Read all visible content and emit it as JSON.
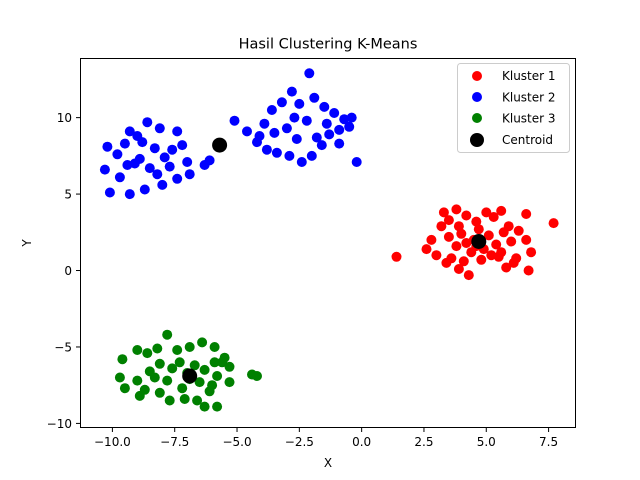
{
  "chart_data": {
    "type": "scatter",
    "title": "Hasil Clustering K-Means",
    "xlabel": "X",
    "ylabel": "Y",
    "xlim": [
      -11.3,
      8.6
    ],
    "ylim": [
      -10.3,
      13.9
    ],
    "xticks": [
      -10.0,
      -7.5,
      -5.0,
      -2.5,
      0.0,
      2.5,
      5.0,
      7.5
    ],
    "xtick_labels": [
      "−10.0",
      "−7.5",
      "−5.0",
      "−2.5",
      "0.0",
      "2.5",
      "5.0",
      "7.5"
    ],
    "yticks": [
      -10,
      -5,
      0,
      5,
      10
    ],
    "ytick_labels": [
      "−10",
      "−5",
      "0",
      "5",
      "10"
    ],
    "grid": false,
    "legend_position": "top-right",
    "series": [
      {
        "name": "Kluster 1",
        "color": "#ff0000",
        "points": [
          [
            1.4,
            0.9
          ],
          [
            7.7,
            3.1
          ],
          [
            3.8,
            4.0
          ],
          [
            3.3,
            3.8
          ],
          [
            5.0,
            3.8
          ],
          [
            5.6,
            3.9
          ],
          [
            6.6,
            3.7
          ],
          [
            4.3,
            -0.3
          ],
          [
            3.4,
            0.5
          ],
          [
            3.9,
            0.1
          ],
          [
            5.8,
            0.2
          ],
          [
            6.7,
            0.0
          ],
          [
            6.8,
            1.2
          ],
          [
            6.1,
            0.5
          ],
          [
            2.6,
            1.4
          ],
          [
            2.8,
            2.0
          ],
          [
            3.2,
            2.9
          ],
          [
            3.5,
            3.3
          ],
          [
            4.2,
            3.6
          ],
          [
            4.6,
            3.2
          ],
          [
            5.3,
            3.5
          ],
          [
            5.9,
            2.9
          ],
          [
            6.3,
            2.6
          ],
          [
            6.6,
            2.0
          ],
          [
            3.0,
            1.0
          ],
          [
            3.6,
            0.8
          ],
          [
            4.1,
            0.6
          ],
          [
            4.8,
            0.7
          ],
          [
            5.5,
            0.9
          ],
          [
            6.2,
            0.8
          ],
          [
            3.8,
            1.6
          ],
          [
            4.0,
            2.4
          ],
          [
            4.4,
            1.2
          ],
          [
            4.5,
            2.0
          ],
          [
            4.9,
            1.4
          ],
          [
            5.1,
            2.3
          ],
          [
            5.4,
            1.7
          ],
          [
            5.7,
            2.5
          ],
          [
            6.0,
            1.9
          ],
          [
            3.5,
            2.2
          ],
          [
            4.7,
            2.7
          ],
          [
            5.2,
            1.0
          ],
          [
            4.2,
            1.8
          ],
          [
            5.6,
            1.2
          ],
          [
            3.9,
            2.9
          ],
          [
            4.6,
            1.6
          ]
        ]
      },
      {
        "name": "Kluster 2",
        "color": "#0000ff",
        "points": [
          [
            -10.2,
            8.1
          ],
          [
            -10.1,
            5.1
          ],
          [
            -10.3,
            6.6
          ],
          [
            -9.8,
            7.6
          ],
          [
            -9.5,
            8.3
          ],
          [
            -9.3,
            9.1
          ],
          [
            -9.0,
            8.8
          ],
          [
            -8.6,
            9.7
          ],
          [
            -8.1,
            9.3
          ],
          [
            -7.4,
            9.1
          ],
          [
            -7.2,
            8.2
          ],
          [
            -7.0,
            7.1
          ],
          [
            -6.9,
            6.3
          ],
          [
            -7.4,
            6.0
          ],
          [
            -8.0,
            5.6
          ],
          [
            -8.7,
            5.3
          ],
          [
            -9.3,
            5.0
          ],
          [
            -9.7,
            6.1
          ],
          [
            -9.4,
            6.9
          ],
          [
            -8.9,
            7.3
          ],
          [
            -8.5,
            6.7
          ],
          [
            -8.3,
            8.0
          ],
          [
            -7.9,
            7.4
          ],
          [
            -7.7,
            6.8
          ],
          [
            -8.8,
            8.4
          ],
          [
            -9.1,
            7.0
          ],
          [
            -8.2,
            6.3
          ],
          [
            -7.6,
            7.9
          ],
          [
            -6.3,
            6.9
          ],
          [
            -6.1,
            7.2
          ],
          [
            -5.1,
            9.8
          ],
          [
            -4.6,
            9.1
          ],
          [
            -4.2,
            8.4
          ],
          [
            -3.9,
            9.6
          ],
          [
            -3.6,
            10.5
          ],
          [
            -3.2,
            11.0
          ],
          [
            -2.8,
            11.7
          ],
          [
            -2.1,
            12.9
          ],
          [
            -2.5,
            10.9
          ],
          [
            -1.9,
            11.3
          ],
          [
            -1.5,
            10.7
          ],
          [
            -1.1,
            10.3
          ],
          [
            -0.7,
            9.9
          ],
          [
            -0.4,
            10.0
          ],
          [
            -0.5,
            9.4
          ],
          [
            -0.9,
            9.2
          ],
          [
            -1.3,
            8.9
          ],
          [
            -1.6,
            8.2
          ],
          [
            -2.0,
            7.5
          ],
          [
            -2.4,
            7.1
          ],
          [
            -2.9,
            7.5
          ],
          [
            -3.4,
            7.7
          ],
          [
            -3.8,
            7.9
          ],
          [
            -4.1,
            8.8
          ],
          [
            -0.2,
            7.1
          ],
          [
            -0.9,
            8.3
          ],
          [
            -2.6,
            8.6
          ],
          [
            -3.0,
            9.3
          ],
          [
            -2.2,
            9.8
          ],
          [
            -1.8,
            8.7
          ],
          [
            -3.5,
            9.0
          ],
          [
            -2.7,
            10.0
          ],
          [
            -1.4,
            9.6
          ]
        ]
      },
      {
        "name": "Kluster 3",
        "color": "#008000",
        "points": [
          [
            -9.6,
            -5.8
          ],
          [
            -9.7,
            -7.0
          ],
          [
            -9.5,
            -7.7
          ],
          [
            -9.0,
            -5.2
          ],
          [
            -8.6,
            -5.4
          ],
          [
            -8.2,
            -5.1
          ],
          [
            -7.8,
            -4.2
          ],
          [
            -7.4,
            -5.2
          ],
          [
            -6.9,
            -5.0
          ],
          [
            -6.4,
            -4.7
          ],
          [
            -5.9,
            -5.0
          ],
          [
            -5.5,
            -5.7
          ],
          [
            -5.3,
            -6.3
          ],
          [
            -5.8,
            -6.9
          ],
          [
            -5.3,
            -7.3
          ],
          [
            -6.1,
            -7.9
          ],
          [
            -6.3,
            -8.9
          ],
          [
            -5.8,
            -8.9
          ],
          [
            -6.6,
            -8.5
          ],
          [
            -7.1,
            -8.4
          ],
          [
            -7.7,
            -8.5
          ],
          [
            -8.1,
            -8.0
          ],
          [
            -8.7,
            -7.8
          ],
          [
            -8.9,
            -8.2
          ],
          [
            -9.0,
            -7.2
          ],
          [
            -8.5,
            -6.6
          ],
          [
            -8.1,
            -6.1
          ],
          [
            -7.6,
            -6.4
          ],
          [
            -7.3,
            -6.0
          ],
          [
            -7.0,
            -6.7
          ],
          [
            -6.7,
            -6.2
          ],
          [
            -6.3,
            -6.5
          ],
          [
            -5.9,
            -6.0
          ],
          [
            -6.5,
            -7.3
          ],
          [
            -7.2,
            -7.7
          ],
          [
            -7.8,
            -7.2
          ],
          [
            -6.9,
            -7.1
          ],
          [
            -4.4,
            -6.8
          ],
          [
            -4.2,
            -6.9
          ],
          [
            -5.6,
            -6.0
          ],
          [
            -8.3,
            -7.0
          ],
          [
            -6.0,
            -7.5
          ]
        ]
      }
    ],
    "centroids": {
      "name": "Centroid",
      "color": "#000000",
      "points": [
        [
          4.7,
          1.9
        ],
        [
          -5.7,
          8.2
        ],
        [
          -6.9,
          -6.9
        ]
      ]
    }
  }
}
